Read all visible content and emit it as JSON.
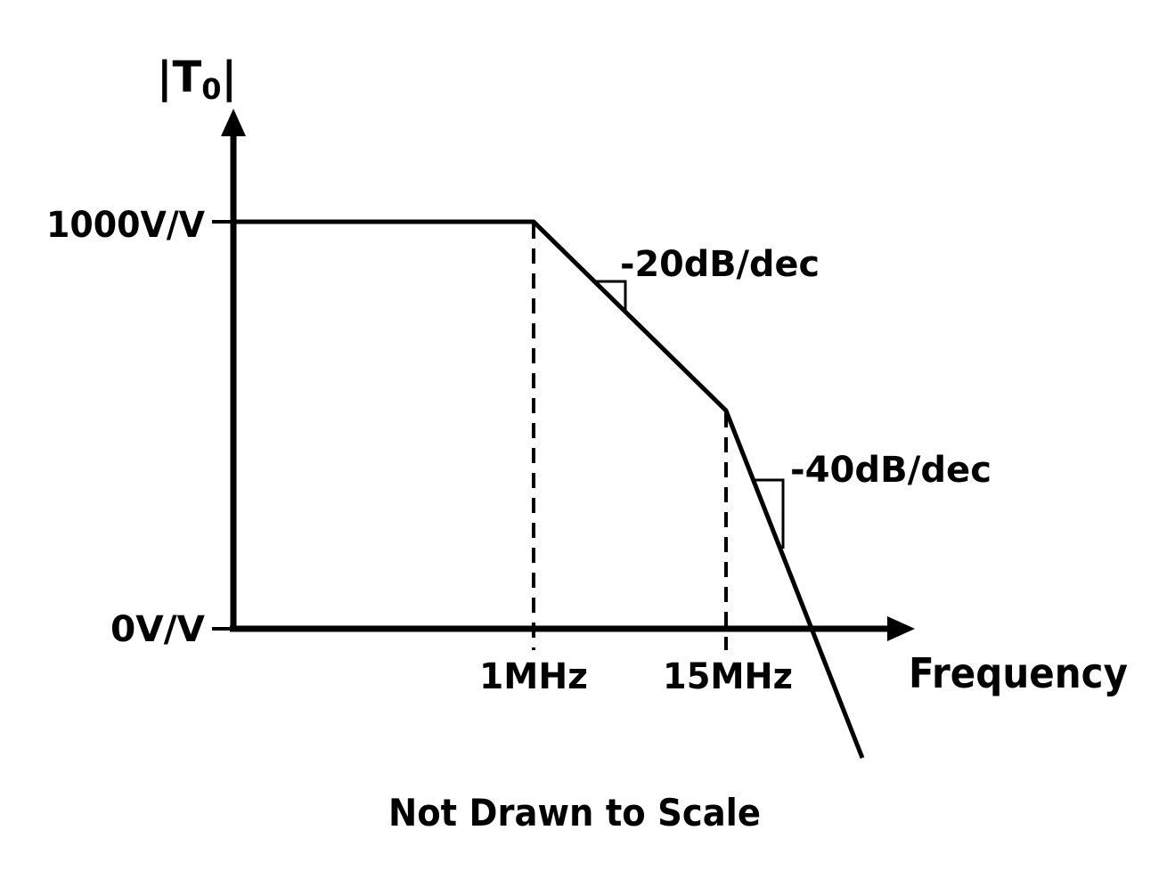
{
  "diagram": {
    "y_axis_label_main": "|T",
    "y_axis_label_sub": "0",
    "y_axis_label_close": "|",
    "y_tick_top": "1000V/V",
    "y_tick_bottom": "0V/V",
    "x_axis_label": "Frequency",
    "x_tick_1": "1MHz",
    "x_tick_2": "15MHz",
    "slope_1": "-20dB/dec",
    "slope_2": "-40dB/dec",
    "footnote": "Not Drawn to Scale",
    "line_color": "#000000"
  },
  "chart_data": {
    "type": "line",
    "x": [
      "1MHz",
      "15MHz"
    ],
    "xlabel": "Frequency",
    "ylabel": "|T0|",
    "yticks": [
      "0V/V",
      "1000V/V"
    ],
    "segments": [
      {
        "from": "low frequency",
        "to": "1MHz",
        "slope": "0dB/dec",
        "level": "1000V/V"
      },
      {
        "from": "1MHz",
        "to": "15MHz",
        "slope": "-20dB/dec"
      },
      {
        "from": "15MHz",
        "to": "high frequency",
        "slope": "-40dB/dec"
      }
    ],
    "annotations": [
      "-20dB/dec",
      "-40dB/dec",
      "Not Drawn to Scale"
    ]
  }
}
